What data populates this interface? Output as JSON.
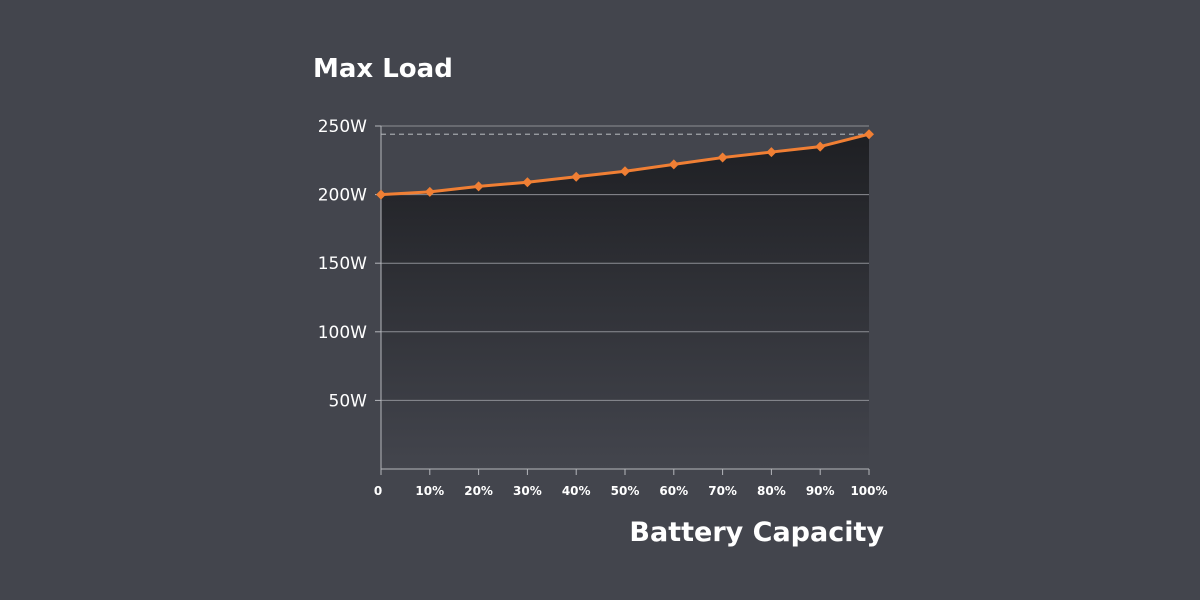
{
  "chart_data": {
    "type": "line",
    "title": "Max Load",
    "xlabel": "Battery Capacity",
    "ylabel": "",
    "x_tick_labels": [
      "0",
      "10%",
      "20%",
      "30%",
      "40%",
      "50%",
      "60%",
      "70%",
      "80%",
      "90%",
      "100%"
    ],
    "y_tick_labels": [
      "250W",
      "200W",
      "150W",
      "100W",
      "50W"
    ],
    "y_ticks": [
      250,
      200,
      150,
      100,
      50
    ],
    "xlim": [
      0,
      100
    ],
    "ylim": [
      0,
      250
    ],
    "grid": true,
    "reference_line": 244,
    "series": [
      {
        "x": [
          0,
          10,
          20,
          30,
          40,
          50,
          60,
          70,
          80,
          90,
          100
        ],
        "values": [
          200,
          202,
          206,
          209,
          213,
          217,
          222,
          227,
          231,
          235,
          244
        ]
      }
    ],
    "colors": {
      "background": "#43454d",
      "line": "#f07f34",
      "grid": "#8c8e94",
      "axis": "#b4b6bb",
      "reference": "#a3a5aa",
      "fill_top": "#1e1f23",
      "fill_bottom": "#43454d"
    }
  }
}
